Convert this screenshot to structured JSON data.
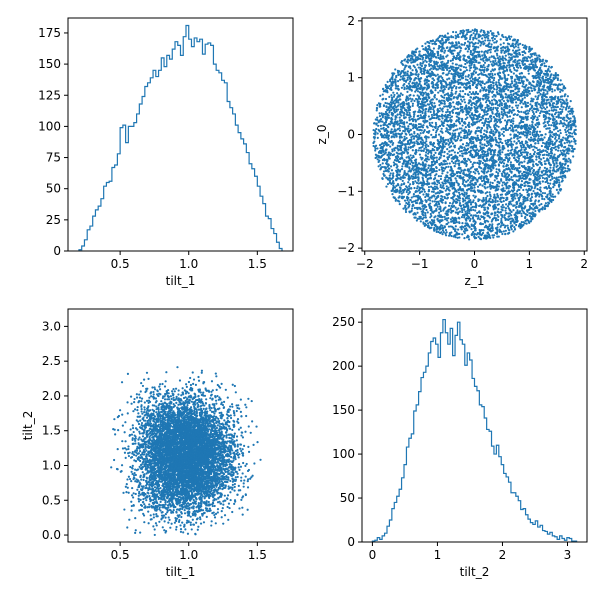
{
  "colors": {
    "series": "#1f77b4",
    "axis": "#000000",
    "background": "#ffffff"
  },
  "chart_data": [
    {
      "type": "histogram",
      "position": "top-left",
      "xlabel": "tilt_1",
      "ylabel": "",
      "xlim": [
        0.12,
        1.76
      ],
      "ylim": [
        0,
        187
      ],
      "xticks": [
        0.5,
        1.0,
        1.5
      ],
      "xtick_labels": [
        "0.5",
        "1.0",
        "1.5"
      ],
      "yticks": [
        0,
        25,
        50,
        75,
        100,
        125,
        150,
        175
      ],
      "ytick_labels": [
        "0",
        "25",
        "50",
        "75",
        "100",
        "125",
        "150",
        "175"
      ],
      "bin_range": [
        0.2,
        1.68
      ],
      "counts": [
        1,
        4,
        9,
        17,
        20,
        28,
        33,
        36,
        42,
        52,
        55,
        56,
        67,
        69,
        78,
        99,
        101,
        87,
        100,
        100,
        103,
        110,
        118,
        124,
        132,
        135,
        139,
        145,
        140,
        145,
        155,
        148,
        157,
        154,
        162,
        168,
        165,
        157,
        172,
        181,
        170,
        164,
        171,
        168,
        170,
        158,
        166,
        167,
        165,
        150,
        145,
        143,
        137,
        135,
        120,
        115,
        110,
        101,
        95,
        90,
        86,
        79,
        70,
        66,
        60,
        52,
        44,
        38,
        28,
        26,
        18,
        14,
        7,
        2
      ]
    },
    {
      "type": "scatter",
      "position": "top-right",
      "xlabel": "z_1",
      "ylabel": "z_0",
      "xlim": [
        -2.05,
        2.05
      ],
      "ylim": [
        -2.05,
        2.05
      ],
      "xticks": [
        -2,
        -1,
        0,
        1,
        2
      ],
      "xtick_labels": [
        "−2",
        "−1",
        "0",
        "1",
        "2"
      ],
      "yticks": [
        -2,
        -1,
        0,
        1,
        2
      ],
      "ytick_labels": [
        "−2",
        "−1",
        "0",
        "1",
        "2"
      ],
      "distribution": "uniform within a disk of radius ~1.85 centered at (0, 0)",
      "n_points": 7000
    },
    {
      "type": "scatter",
      "position": "bottom-left",
      "xlabel": "tilt_1",
      "ylabel": "tilt_2",
      "xlim": [
        0.12,
        1.76
      ],
      "ylim": [
        -0.1,
        3.25
      ],
      "xticks": [
        0.5,
        1.0,
        1.5
      ],
      "xtick_labels": [
        "0.5",
        "1.0",
        "1.5"
      ],
      "yticks": [
        0,
        0.5,
        1.0,
        1.5,
        2.0,
        2.5,
        3.0
      ],
      "ytick_labels": [
        "0.0",
        "0.5",
        "1.0",
        "1.5",
        "2.0",
        "2.5",
        "3.0"
      ],
      "distribution": "tilt_1 in [0.2, 1.68] peaked near 0.95, tilt_2 in [0, 3.1] peaked near 1.1",
      "n_points": 7000
    },
    {
      "type": "histogram",
      "position": "bottom-right",
      "xlabel": "tilt_2",
      "ylabel": "",
      "xlim": [
        -0.16,
        3.3
      ],
      "ylim": [
        0,
        265
      ],
      "xticks": [
        0,
        1,
        2,
        3
      ],
      "xtick_labels": [
        "0",
        "1",
        "2",
        "3"
      ],
      "yticks": [
        0,
        50,
        100,
        150,
        200,
        250
      ],
      "ytick_labels": [
        "0",
        "50",
        "100",
        "150",
        "200",
        "250"
      ],
      "bin_range": [
        0.0,
        3.14
      ],
      "counts": [
        1,
        2,
        5,
        3,
        7,
        10,
        18,
        25,
        38,
        45,
        52,
        60,
        73,
        88,
        108,
        118,
        123,
        149,
        156,
        171,
        187,
        193,
        200,
        215,
        228,
        232,
        225,
        210,
        238,
        253,
        238,
        225,
        243,
        212,
        235,
        250,
        230,
        225,
        201,
        215,
        207,
        186,
        177,
        172,
        156,
        154,
        141,
        128,
        126,
        109,
        100,
        110,
        97,
        88,
        78,
        74,
        68,
        56,
        56,
        52,
        47,
        37,
        38,
        31,
        26,
        22,
        20,
        24,
        17,
        19,
        13,
        12,
        9,
        11,
        7,
        6,
        3,
        7,
        4,
        2,
        5,
        4,
        1,
        1
      ]
    }
  ]
}
